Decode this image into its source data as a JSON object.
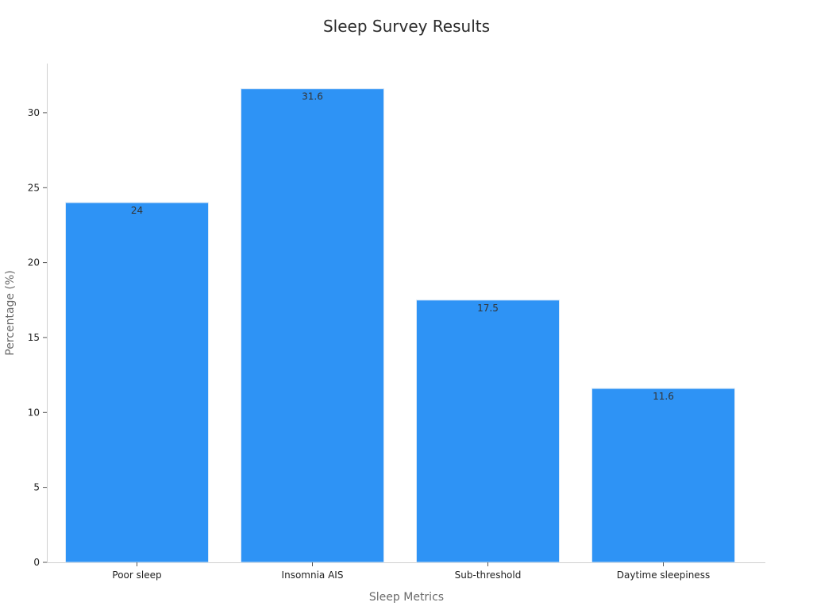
{
  "chart_data": {
    "type": "bar",
    "title": "Sleep Survey Results",
    "xlabel": "Sleep Metrics",
    "ylabel": "Percentage (%)",
    "categories": [
      "Poor sleep",
      "Insomnia AIS",
      "Sub-threshold",
      "Daytime sleepiness"
    ],
    "values": [
      24,
      31.6,
      17.5,
      11.6
    ],
    "value_labels": [
      "24",
      "31.6",
      "17.5",
      "11.6"
    ],
    "ylim": [
      0,
      33
    ],
    "yticks": [
      0,
      5,
      10,
      15,
      20,
      25,
      30
    ],
    "grid": false,
    "bar_color": "#2e93f5"
  }
}
